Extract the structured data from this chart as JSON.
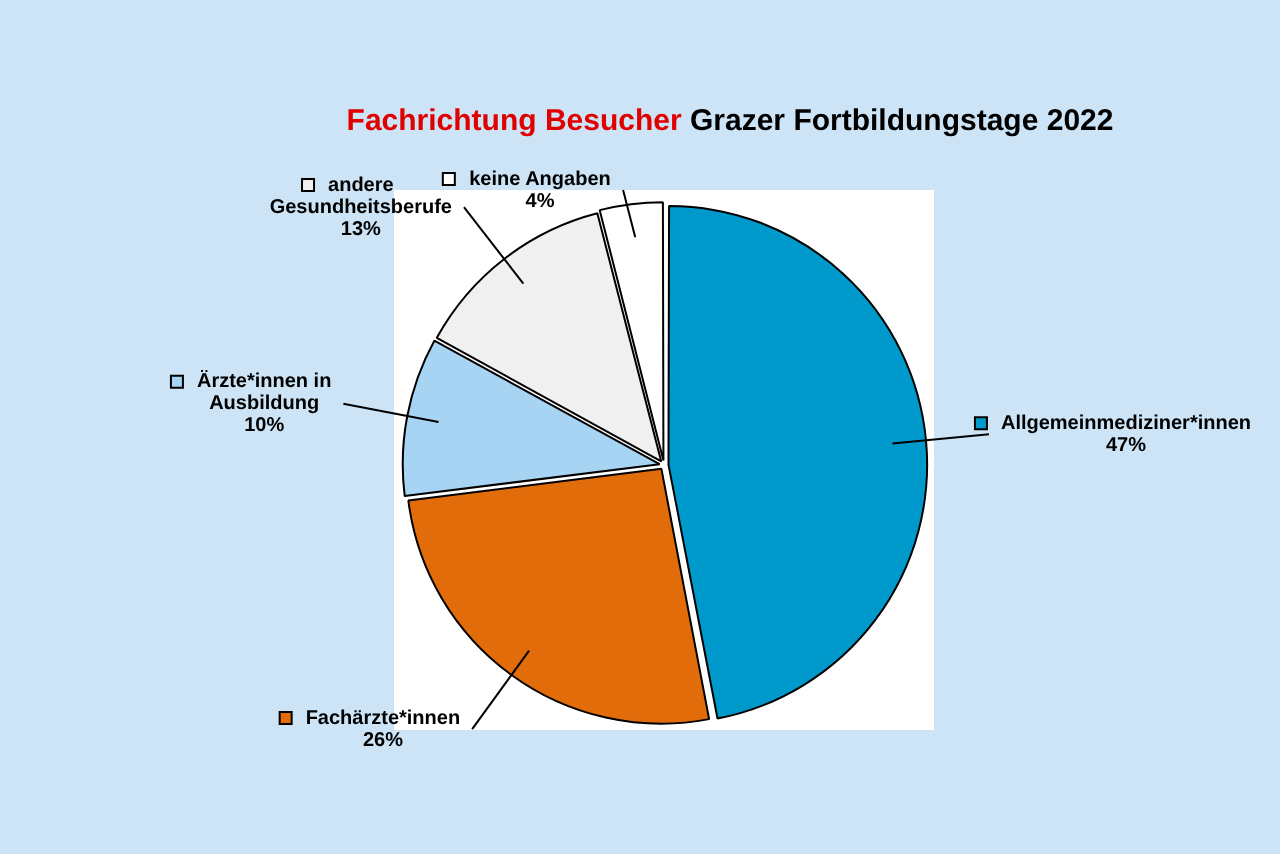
{
  "chart_data": {
    "type": "pie",
    "title": "Fachrichtung Besucher Grazer Fortbildungstage 2022",
    "categories": [
      "Allgemeinmediziner*innen",
      "Fachärzte*innen",
      "Ärzte*innen in Ausbildung",
      "andere Gesundheitsberufe",
      "keine Angaben"
    ],
    "values": [
      47,
      26,
      10,
      13,
      4
    ],
    "colors": [
      "#0099cc",
      "#e36c0a",
      "#a6d4f2",
      "#f0f0f0",
      "#ffffff"
    ],
    "value_labels": [
      "47%",
      "26%",
      "10%",
      "13%",
      "4%"
    ],
    "legend": "right"
  }
}
